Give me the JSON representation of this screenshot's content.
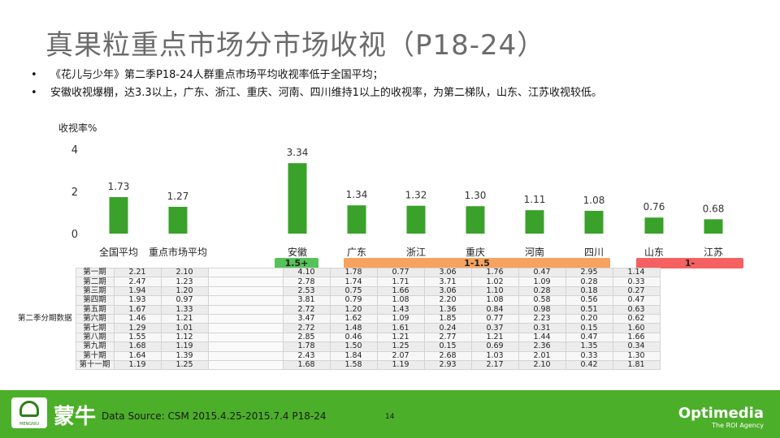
{
  "title": "真果粒重点市场分市场收视（P18-24）",
  "bullets": [
    "《花儿与少年》第二季P18-24人群重点市场平均收视率低于全国平均；",
    "安徽收视爆棚，达3.3以上，广东、浙江、重庆、河南、四川维持1以上的收视率，为第二梯队，山东、江苏收视较低。"
  ],
  "chart_data": {
    "type": "bar",
    "ylabel": "收视率%",
    "ylim": [
      0,
      4
    ],
    "yticks": [
      0,
      2,
      4
    ],
    "categories": [
      "全国平均",
      "重点市场平均",
      "安徽",
      "广东",
      "浙江",
      "重庆",
      "河南",
      "四川",
      "山东",
      "江苏"
    ],
    "values": [
      1.73,
      1.27,
      3.34,
      1.34,
      1.32,
      1.3,
      1.11,
      1.08,
      0.76,
      0.68
    ],
    "bar_color": "#3aa12a",
    "grid": false
  },
  "bands": [
    {
      "label": "1.5+",
      "color": "#55c25a"
    },
    {
      "label": "1-1.5",
      "color": "#f7a25e"
    },
    {
      "label": "1-",
      "color": "#f56060"
    }
  ],
  "table": {
    "group_label": "第二季分期数据",
    "rows": [
      {
        "label": "第一期",
        "values": [
          "2.21",
          "2.10",
          "4.10",
          "1.78",
          "0.77",
          "3.06",
          "1.76",
          "0.47",
          "2.95",
          "1.14"
        ]
      },
      {
        "label": "第二期",
        "values": [
          "2.47",
          "1.23",
          "2.78",
          "1.74",
          "1.71",
          "3.71",
          "1.02",
          "1.09",
          "0.28",
          "0.33"
        ]
      },
      {
        "label": "第三期",
        "values": [
          "1.94",
          "1.20",
          "2.53",
          "0.75",
          "1.66",
          "3.06",
          "1.10",
          "0.28",
          "0.18",
          "0.27"
        ]
      },
      {
        "label": "第四期",
        "values": [
          "1.93",
          "0.97",
          "3.81",
          "0.79",
          "1.08",
          "2.20",
          "1.08",
          "0.58",
          "0.56",
          "0.47"
        ]
      },
      {
        "label": "第五期",
        "values": [
          "1.67",
          "1.33",
          "2.72",
          "1.20",
          "1.43",
          "1.36",
          "0.84",
          "0.98",
          "0.51",
          "0.63"
        ]
      },
      {
        "label": "第六期",
        "values": [
          "1.46",
          "1.21",
          "3.47",
          "1.62",
          "1.09",
          "1.85",
          "0.77",
          "2.23",
          "0.20",
          "0.62"
        ]
      },
      {
        "label": "第七期",
        "values": [
          "1.29",
          "1.01",
          "2.72",
          "1.48",
          "1.61",
          "0.24",
          "0.37",
          "0.31",
          "0.15",
          "1.60"
        ]
      },
      {
        "label": "第八期",
        "values": [
          "1.55",
          "1.12",
          "2.85",
          "0.46",
          "1.21",
          "2.77",
          "1.21",
          "1.44",
          "0.47",
          "1.66"
        ]
      },
      {
        "label": "第九期",
        "values": [
          "1.68",
          "1.19",
          "1.78",
          "1.50",
          "1.25",
          "0.15",
          "0.69",
          "2.36",
          "1.35",
          "0.34"
        ]
      },
      {
        "label": "第十期",
        "values": [
          "1.64",
          "1.39",
          "2.43",
          "1.84",
          "2.07",
          "2.68",
          "1.03",
          "2.01",
          "0.33",
          "1.30"
        ]
      },
      {
        "label": "第十一期",
        "values": [
          "1.19",
          "1.25",
          "1.68",
          "1.58",
          "1.19",
          "2.93",
          "2.17",
          "2.10",
          "0.42",
          "1.81"
        ]
      }
    ]
  },
  "footer": {
    "brand_cn": "蒙牛",
    "brand_en": "MENGNIU",
    "source": "Data Source: CSM 2015.4.25-2015.7.4 P18-24",
    "page": "14",
    "agency": "Optimedia",
    "agency_tag": "The ROI Agency"
  }
}
